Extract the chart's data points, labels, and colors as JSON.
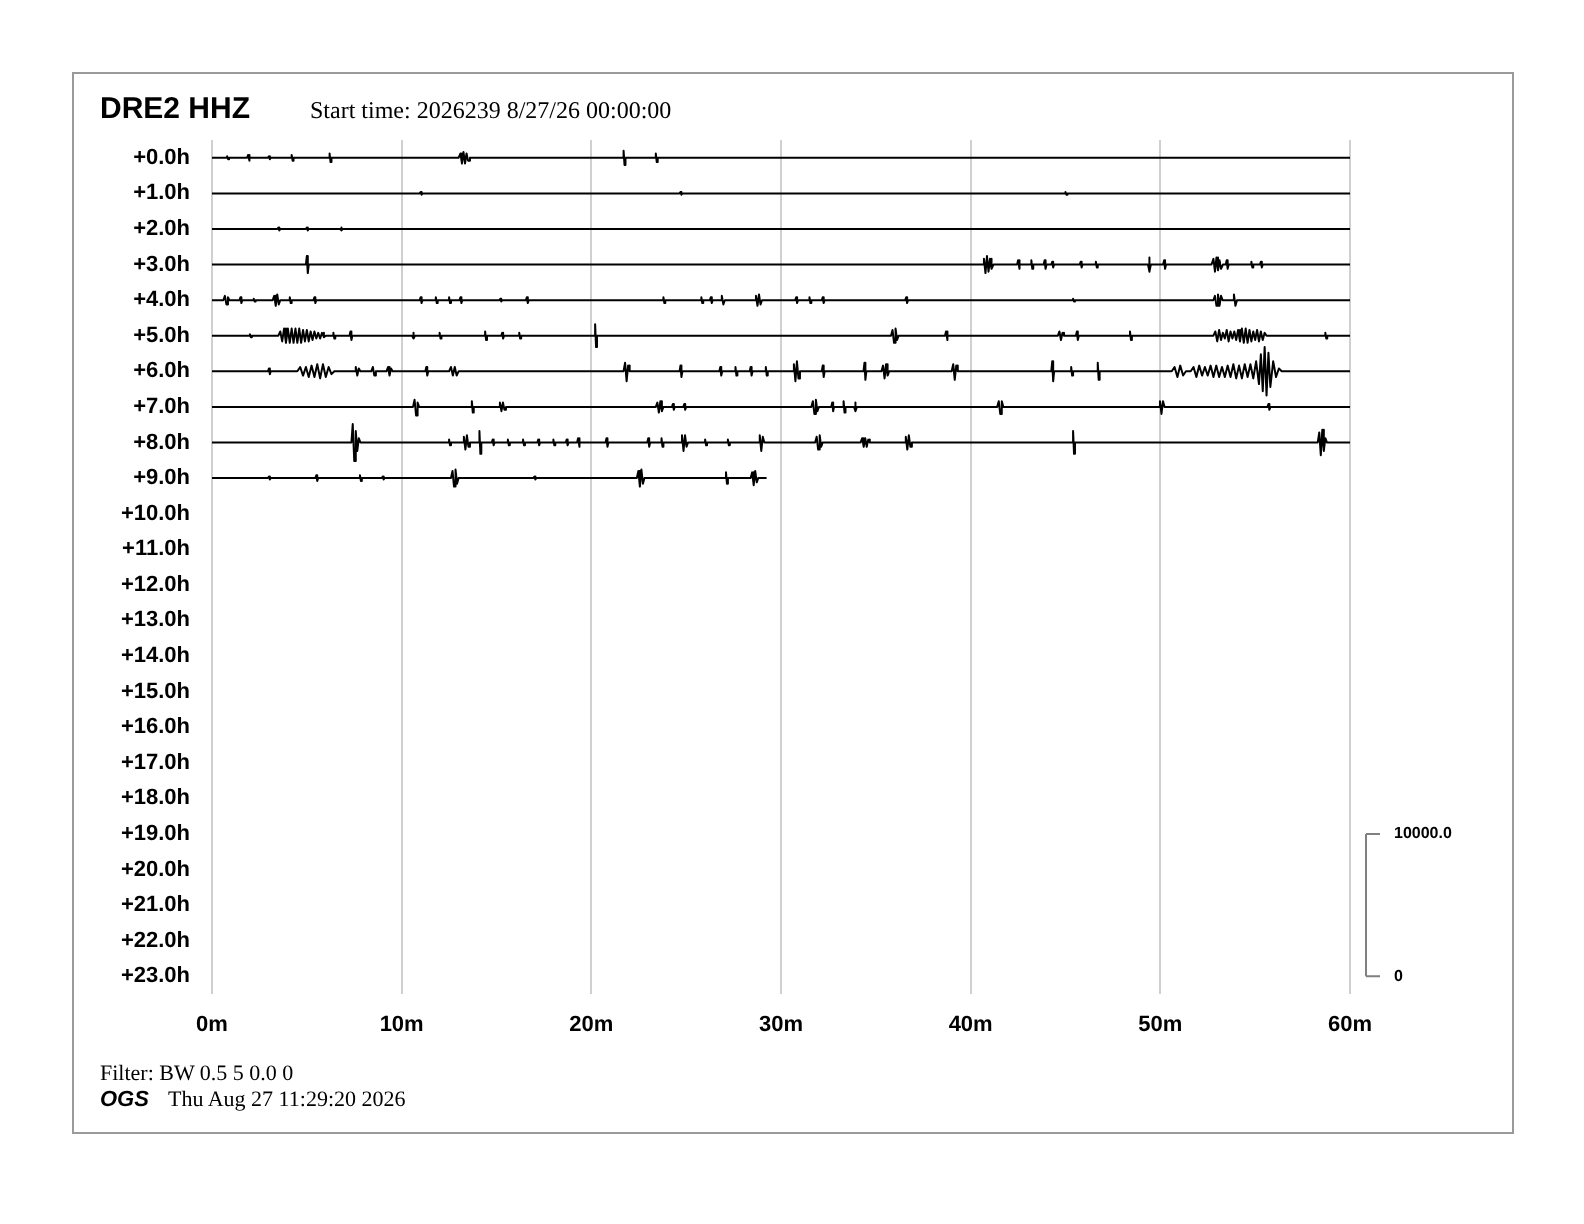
{
  "chart_data": {
    "type": "line",
    "title": "DRE2 HHZ",
    "subtitle": "Start time: 2026239  8/27/26 00:00:00",
    "annotations": [
      "Filter: BW 0.5 5 0.0 0",
      "OGS",
      "Thu Aug 27 11:29:20 2026"
    ],
    "xlim": [
      0,
      60
    ],
    "xticks": [
      {
        "value": 0,
        "label": "0m"
      },
      {
        "value": 10,
        "label": "10m"
      },
      {
        "value": 20,
        "label": "20m"
      },
      {
        "value": 30,
        "label": "30m"
      },
      {
        "value": 40,
        "label": "40m"
      },
      {
        "value": 50,
        "label": "50m"
      },
      {
        "value": 60,
        "label": "60m"
      }
    ],
    "ylim": [
      23.5,
      -0.5
    ],
    "yticks": [
      {
        "value": 0,
        "label": "+0.0h"
      },
      {
        "value": 1,
        "label": "+1.0h"
      },
      {
        "value": 2,
        "label": "+2.0h"
      },
      {
        "value": 3,
        "label": "+3.0h"
      },
      {
        "value": 4,
        "label": "+4.0h"
      },
      {
        "value": 5,
        "label": "+5.0h"
      },
      {
        "value": 6,
        "label": "+6.0h"
      },
      {
        "value": 7,
        "label": "+7.0h"
      },
      {
        "value": 8,
        "label": "+8.0h"
      },
      {
        "value": 9,
        "label": "+9.0h"
      },
      {
        "value": 10,
        "label": "+10.0h"
      },
      {
        "value": 11,
        "label": "+11.0h"
      },
      {
        "value": 12,
        "label": "+12.0h"
      },
      {
        "value": 13,
        "label": "+13.0h"
      },
      {
        "value": 14,
        "label": "+14.0h"
      },
      {
        "value": 15,
        "label": "+15.0h"
      },
      {
        "value": 16,
        "label": "+16.0h"
      },
      {
        "value": 17,
        "label": "+17.0h"
      },
      {
        "value": 18,
        "label": "+18.0h"
      },
      {
        "value": 19,
        "label": "+19.0h"
      },
      {
        "value": 20,
        "label": "+20.0h"
      },
      {
        "value": 21,
        "label": "+21.0h"
      },
      {
        "value": 22,
        "label": "+22.0h"
      },
      {
        "value": 23,
        "label": "+23.0h"
      }
    ],
    "y2lim": [
      -1250,
      58750
    ],
    "y2ticks": [
      0,
      {
        "value": 10000,
        "label": "10000.0"
      }
    ],
    "grid": "x",
    "marker": "none",
    "line_style": "solid",
    "series": [
      {
        "color": "#000000",
        "axis": "y2",
        "x": [
          0,
          0.75,
          0.8,
          0.85,
          0.9,
          1.85,
          1.9,
          1.95,
          2,
          2.95,
          3,
          3.05,
          3.1,
          4.15,
          4.2,
          4.25,
          4.3,
          6.15,
          6.2,
          6.25,
          6.3,
          13,
          13.1,
          13.18,
          13.26,
          13.34,
          13.42,
          13.5,
          13.6,
          21.65,
          21.7,
          21.75,
          21.8,
          23.35,
          23.4,
          23.45,
          23.5,
          60
        ],
        "values": [
          57500,
          57500,
          57600,
          57400,
          57500,
          57500,
          57700,
          57300,
          57500,
          57500,
          57600,
          57400,
          57500,
          57500,
          57700,
          57300,
          57500,
          57500,
          57800,
          57200,
          57500,
          57500,
          57800,
          57100,
          57900,
          57100,
          57800,
          57300,
          57500,
          57500,
          58000,
          57000,
          57500,
          57500,
          57800,
          57200,
          57500,
          57500
        ]
      },
      {
        "color": "#000000",
        "axis": "y2",
        "x": [
          0,
          10.95,
          11,
          11.05,
          11.1,
          24.65,
          24.7,
          24.75,
          24.8,
          44.95,
          45,
          45.05,
          45.1,
          60
        ],
        "values": [
          55000,
          55000,
          55100,
          54900,
          55000,
          55000,
          55100,
          54900,
          55000,
          55000,
          55100,
          54900,
          55000,
          55000
        ]
      },
      {
        "color": "#000000",
        "axis": "y2",
        "x": [
          0,
          3.45,
          3.5,
          3.55,
          3.6,
          4.95,
          5,
          5.05,
          5.1,
          6.75,
          6.8,
          6.85,
          6.9,
          60
        ],
        "values": [
          52500,
          52500,
          52600,
          52400,
          52500,
          52500,
          52600,
          52400,
          52500,
          52500,
          52600,
          52400,
          52500,
          52500
        ]
      },
      {
        "color": "#000000",
        "axis": "y2",
        "x": [
          0,
          4.95,
          5,
          5.05,
          5.1,
          40.6,
          40.7,
          40.78,
          40.86,
          40.94,
          41.02,
          41.1,
          41.2,
          42.45,
          42.5,
          42.55,
          42.6,
          43.15,
          43.2,
          43.25,
          43.3,
          43.85,
          43.9,
          43.95,
          44,
          44.25,
          44.3,
          44.35,
          44.4,
          45.75,
          45.8,
          45.85,
          45.9,
          46.55,
          46.6,
          46.65,
          46.7,
          49.35,
          49.4,
          49.45,
          49.5,
          50.15,
          50.2,
          50.25,
          50.3,
          52.7,
          52.8,
          52.88,
          52.96,
          53.04,
          53.12,
          53.2,
          53.3,
          53.45,
          53.5,
          53.55,
          53.6,
          54.75,
          54.8,
          54.85,
          54.9,
          55.25,
          55.3,
          55.35,
          55.4,
          60
        ],
        "values": [
          50000,
          50000,
          50600,
          49400,
          50000,
          50000,
          50400,
          49400,
          50600,
          49500,
          50400,
          49700,
          50000,
          50000,
          50300,
          49700,
          50000,
          50000,
          50300,
          49700,
          50000,
          50000,
          50300,
          49700,
          50000,
          50000,
          50200,
          49800,
          50000,
          50000,
          50200,
          49800,
          50000,
          50000,
          50200,
          49800,
          50000,
          50000,
          50500,
          49500,
          50000,
          50000,
          50300,
          49700,
          50000,
          50000,
          50400,
          49500,
          50500,
          49600,
          50300,
          49700,
          50000,
          50000,
          50300,
          49700,
          50000,
          50000,
          50200,
          49800,
          50000,
          50000,
          50200,
          49800,
          50000,
          50000
        ]
      },
      {
        "color": "#000000",
        "axis": "y2",
        "x": [
          0,
          0.6,
          0.68,
          0.76,
          0.84,
          0.92,
          1.45,
          1.5,
          1.55,
          1.6,
          2.15,
          2.2,
          2.25,
          2.3,
          3.2,
          3.28,
          3.36,
          3.44,
          3.52,
          3.6,
          4.05,
          4.1,
          4.15,
          4.2,
          5.35,
          5.4,
          5.45,
          5.5,
          10.95,
          11,
          11.05,
          11.1,
          11.75,
          11.8,
          11.85,
          11.9,
          12.45,
          12.5,
          12.55,
          12.6,
          13.05,
          13.1,
          13.15,
          13.2,
          15.15,
          15.2,
          15.25,
          15.3,
          16.55,
          16.6,
          16.65,
          16.7,
          23.75,
          23.8,
          23.85,
          23.9,
          25.75,
          25.8,
          25.85,
          25.9,
          26.25,
          26.3,
          26.35,
          26.4,
          26.8,
          26.88,
          26.96,
          27.04,
          28.6,
          28.68,
          28.76,
          28.84,
          28.92,
          29,
          30.75,
          30.8,
          30.85,
          30.9,
          31.45,
          31.5,
          31.55,
          31.6,
          32.15,
          32.2,
          32.25,
          32.3,
          36.55,
          36.6,
          36.65,
          36.7,
          45.35,
          45.4,
          45.45,
          45.5,
          52.8,
          52.88,
          52.96,
          53.04,
          53.12,
          53.2,
          53.28,
          53.8,
          53.88,
          53.96,
          54.04,
          60
        ],
        "values": [
          47500,
          47500,
          47800,
          47200,
          47700,
          47500,
          47500,
          47700,
          47300,
          47500,
          47500,
          47600,
          47400,
          47500,
          47500,
          47800,
          47100,
          47900,
          47200,
          47500,
          47500,
          47700,
          47300,
          47500,
          47500,
          47700,
          47300,
          47500,
          47500,
          47700,
          47300,
          47500,
          47500,
          47700,
          47300,
          47500,
          47500,
          47700,
          47300,
          47500,
          47500,
          47700,
          47300,
          47500,
          47500,
          47600,
          47400,
          47500,
          47500,
          47700,
          47300,
          47500,
          47500,
          47700,
          47300,
          47500,
          47500,
          47700,
          47300,
          47500,
          47500,
          47700,
          47300,
          47500,
          47500,
          47800,
          47200,
          47500,
          47500,
          47800,
          47100,
          47900,
          47200,
          47500,
          47500,
          47700,
          47300,
          47500,
          47500,
          47700,
          47300,
          47500,
          47500,
          47700,
          47300,
          47500,
          47500,
          47700,
          47300,
          47500,
          47500,
          47600,
          47400,
          47500,
          47500,
          47800,
          47100,
          47900,
          47100,
          47800,
          47500,
          47500,
          47900,
          47100,
          47500,
          47500
        ]
      },
      {
        "color": "#000000",
        "axis": "y2",
        "x": [
          0,
          1.95,
          2,
          2.05,
          2.1,
          3.5,
          3.6,
          3.7,
          3.8,
          3.9,
          4,
          4.1,
          4.2,
          4.3,
          4.4,
          4.5,
          4.6,
          4.7,
          4.8,
          4.9,
          5,
          5.1,
          5.2,
          5.3,
          5.4,
          5.5,
          5.6,
          5.7,
          5.8,
          5.9,
          6,
          6.35,
          6.4,
          6.45,
          6.5,
          7.25,
          7.3,
          7.35,
          7.4,
          10.55,
          10.6,
          10.65,
          10.7,
          11.95,
          12,
          12.05,
          12.1,
          14.35,
          14.4,
          14.45,
          14.5,
          15.25,
          15.3,
          15.35,
          15.4,
          16.15,
          16.2,
          16.25,
          16.3,
          20.15,
          20.2,
          20.25,
          20.3,
          35.8,
          35.88,
          35.96,
          36.04,
          36.12,
          36.2,
          38.65,
          38.7,
          38.75,
          38.8,
          44.6,
          44.68,
          44.76,
          44.84,
          44.92,
          45.55,
          45.6,
          45.65,
          45.7,
          48.35,
          48.4,
          48.45,
          48.5,
          52.8,
          52.9,
          53,
          53.1,
          53.2,
          53.3,
          53.4,
          53.5,
          53.6,
          53.7,
          53.8,
          53.9,
          54,
          54.1,
          54.2,
          54.3,
          54.4,
          54.5,
          54.6,
          54.7,
          54.8,
          54.9,
          55,
          55.1,
          55.2,
          55.3,
          55.4,
          55.5,
          55.6,
          58.65,
          58.7,
          58.75,
          58.8,
          60
        ],
        "values": [
          45000,
          45000,
          45100,
          44900,
          45000,
          45000,
          45300,
          44600,
          45500,
          44500,
          45500,
          44500,
          45500,
          44500,
          45500,
          44500,
          45500,
          44500,
          45400,
          44600,
          45400,
          44600,
          45300,
          44700,
          45300,
          44800,
          45200,
          44800,
          45200,
          44900,
          45000,
          45000,
          45200,
          44800,
          45000,
          45000,
          45300,
          44700,
          45000,
          45000,
          45200,
          44800,
          45000,
          45000,
          45200,
          44800,
          45000,
          45000,
          45300,
          44700,
          45000,
          45000,
          45200,
          44800,
          45000,
          45000,
          45200,
          44800,
          45000,
          45000,
          45800,
          44200,
          45000,
          45000,
          45400,
          44500,
          45500,
          44700,
          45000,
          45000,
          45300,
          44700,
          45000,
          45000,
          45300,
          44700,
          45200,
          45000,
          45000,
          45300,
          44700,
          45000,
          45000,
          45300,
          44700,
          45000,
          45000,
          45300,
          44600,
          45400,
          44700,
          45200,
          44800,
          45400,
          44600,
          45300,
          44800,
          45300,
          44700,
          45400,
          44600,
          45500,
          44500,
          45500,
          44500,
          45400,
          44600,
          45300,
          44700,
          45400,
          44600,
          45300,
          44700,
          45200,
          45000,
          45000,
          45200,
          44800,
          45000,
          45000
        ]
      },
      {
        "color": "#000000",
        "axis": "y2",
        "x": [
          0,
          2.95,
          3,
          3.05,
          3.1,
          4.5,
          4.65,
          4.8,
          4.95,
          5.1,
          5.25,
          5.4,
          5.55,
          5.7,
          5.85,
          6,
          6.15,
          6.3,
          6.45,
          7.5,
          7.58,
          7.66,
          7.74,
          7.82,
          8.4,
          8.48,
          8.56,
          8.64,
          9.2,
          9.28,
          9.36,
          9.44,
          9.52,
          11.25,
          11.3,
          11.35,
          11.4,
          12.5,
          12.6,
          12.7,
          12.8,
          12.9,
          13,
          21.7,
          21.78,
          21.86,
          21.94,
          22.02,
          24.65,
          24.7,
          24.75,
          24.8,
          26.75,
          26.8,
          26.85,
          26.9,
          27.55,
          27.6,
          27.65,
          27.7,
          28.35,
          28.4,
          28.45,
          28.5,
          29.15,
          29.2,
          29.25,
          29.3,
          30.6,
          30.68,
          30.76,
          30.84,
          30.92,
          31,
          32.15,
          32.2,
          32.25,
          32.3,
          34.35,
          34.4,
          34.45,
          34.5,
          35.3,
          35.38,
          35.46,
          35.54,
          35.62,
          35.7,
          39,
          39.08,
          39.16,
          39.24,
          39.32,
          44.25,
          44.3,
          44.35,
          44.4,
          45.25,
          45.3,
          45.35,
          45.4,
          46.65,
          46.7,
          46.75,
          46.8,
          50.6,
          50.75,
          50.9,
          51.05,
          51.2,
          51.35,
          51.6,
          51.75,
          51.9,
          52.05,
          52.2,
          52.35,
          52.5,
          52.65,
          52.8,
          52.95,
          53.1,
          53.25,
          53.4,
          53.55,
          53.7,
          53.85,
          54,
          54.15,
          54.3,
          54.45,
          54.6,
          54.75,
          54.9,
          55.05,
          55.2,
          55.3,
          55.4,
          55.5,
          55.6,
          55.7,
          55.8,
          55.95,
          56.1,
          56.25,
          56.4,
          60
        ],
        "values": [
          42500,
          42500,
          42700,
          42300,
          42500,
          42500,
          42800,
          42200,
          42800,
          42100,
          42900,
          42100,
          43000,
          42000,
          43000,
          42100,
          42800,
          42300,
          42500,
          42500,
          42800,
          42200,
          42700,
          42500,
          42500,
          42800,
          42200,
          42500,
          42500,
          42800,
          42200,
          42700,
          42500,
          42500,
          42800,
          42200,
          42500,
          42500,
          42800,
          42200,
          42800,
          42200,
          42500,
          42500,
          43100,
          41800,
          42900,
          42500,
          42500,
          42900,
          42100,
          42500,
          42500,
          42800,
          42200,
          42500,
          42500,
          42800,
          42200,
          42500,
          42500,
          42800,
          42200,
          42500,
          42500,
          42800,
          42200,
          42500,
          42500,
          43000,
          41800,
          43200,
          42000,
          42500,
          42500,
          42900,
          42100,
          42500,
          42500,
          43100,
          41900,
          42500,
          42500,
          42900,
          42000,
          43000,
          42200,
          42500,
          42500,
          43000,
          41900,
          42900,
          42500,
          42500,
          43200,
          41800,
          42500,
          42500,
          42800,
          42200,
          42500,
          42500,
          43100,
          41900,
          42500,
          42500,
          42800,
          42100,
          42900,
          42200,
          42500,
          42500,
          42800,
          42100,
          42900,
          42200,
          42800,
          42200,
          42900,
          42100,
          42900,
          42100,
          42800,
          42100,
          42900,
          42100,
          43000,
          42000,
          42900,
          42000,
          43000,
          42100,
          43000,
          42000,
          43200,
          41600,
          43700,
          41100,
          44200,
          40800,
          43800,
          41400,
          43200,
          42100,
          42700,
          42500,
          42500
        ]
      },
      {
        "color": "#000000",
        "axis": "y2",
        "x": [
          0,
          10.6,
          10.68,
          10.76,
          10.84,
          10.92,
          13.65,
          13.7,
          13.75,
          13.8,
          15.1,
          15.18,
          15.26,
          15.34,
          15.42,
          15.5,
          23.4,
          23.48,
          23.56,
          23.64,
          23.72,
          23.8,
          24.25,
          24.3,
          24.35,
          24.4,
          24.85,
          24.9,
          24.95,
          25,
          31.6,
          31.68,
          31.76,
          31.84,
          31.92,
          32,
          32.65,
          32.7,
          32.75,
          32.8,
          33.25,
          33.3,
          33.35,
          33.4,
          33.85,
          33.9,
          33.95,
          34,
          41.4,
          41.48,
          41.56,
          41.64,
          41.72,
          49.9,
          49.98,
          50.06,
          50.14,
          50.22,
          55.65,
          55.7,
          55.75,
          55.8,
          60
        ],
        "values": [
          40000,
          40000,
          40500,
          39400,
          40300,
          40000,
          40000,
          40400,
          39600,
          40000,
          40000,
          40300,
          39700,
          40300,
          39800,
          40000,
          40000,
          40300,
          39600,
          40400,
          39700,
          40000,
          40000,
          40200,
          39800,
          40000,
          40000,
          40200,
          39800,
          40000,
          40000,
          40400,
          39500,
          40500,
          39700,
          40000,
          40000,
          40300,
          39700,
          40000,
          40000,
          40400,
          39600,
          40000,
          40000,
          40300,
          39700,
          40000,
          40000,
          40400,
          39500,
          40400,
          40000,
          40000,
          40400,
          39500,
          40400,
          40000,
          40000,
          40200,
          39800,
          40000,
          40000
        ]
      },
      {
        "color": "#000000",
        "axis": "y2",
        "x": [
          0,
          7.35,
          7.42,
          7.5,
          7.58,
          7.66,
          7.74,
          7.82,
          12.45,
          12.5,
          12.55,
          12.6,
          13.2,
          13.28,
          13.36,
          13.44,
          13.52,
          13.6,
          14.05,
          14.1,
          14.15,
          14.2,
          14.75,
          14.8,
          14.85,
          14.9,
          15.55,
          15.6,
          15.65,
          15.7,
          16.35,
          16.4,
          16.45,
          16.5,
          17.15,
          17.2,
          17.25,
          17.3,
          17.95,
          18,
          18.05,
          18.1,
          18.65,
          18.7,
          18.75,
          18.8,
          19.25,
          19.3,
          19.35,
          19.4,
          20.75,
          20.8,
          20.85,
          20.9,
          22.95,
          23,
          23.05,
          23.1,
          23.65,
          23.7,
          23.75,
          23.8,
          24.7,
          24.78,
          24.86,
          24.94,
          25.02,
          25.1,
          25.95,
          26,
          26.05,
          26.1,
          27.15,
          27.2,
          27.25,
          27.3,
          28.8,
          28.88,
          28.96,
          29.04,
          29.12,
          31.8,
          31.88,
          31.96,
          32.04,
          32.12,
          32.2,
          34.2,
          34.28,
          34.36,
          34.44,
          34.52,
          34.6,
          34.68,
          36.5,
          36.58,
          36.66,
          36.74,
          36.82,
          36.9,
          45.35,
          45.4,
          45.45,
          45.5,
          58.3,
          58.38,
          58.46,
          58.54,
          58.62,
          58.7,
          58.78,
          60
        ],
        "values": [
          37500,
          37500,
          38800,
          36200,
          38300,
          36900,
          37800,
          37500,
          37500,
          37700,
          37300,
          37500,
          37500,
          37900,
          37000,
          38000,
          37200,
          37500,
          37500,
          38300,
          36700,
          37500,
          37500,
          37700,
          37300,
          37500,
          37500,
          37700,
          37300,
          37500,
          37500,
          37700,
          37300,
          37500,
          37500,
          37700,
          37300,
          37500,
          37500,
          37700,
          37300,
          37500,
          37500,
          37700,
          37300,
          37500,
          37500,
          37800,
          37200,
          37500,
          37500,
          37800,
          37200,
          37500,
          37500,
          37800,
          37200,
          37500,
          37500,
          37800,
          37200,
          37500,
          37500,
          38000,
          36900,
          38000,
          37200,
          37500,
          37500,
          37700,
          37300,
          37500,
          37500,
          37700,
          37300,
          37500,
          37500,
          38000,
          36900,
          37900,
          37500,
          37500,
          37900,
          37000,
          38000,
          37200,
          37500,
          37500,
          37800,
          37200,
          37800,
          37200,
          37700,
          37500,
          37500,
          37900,
          37000,
          38000,
          37200,
          37500,
          37500,
          38300,
          36700,
          37500,
          37500,
          38200,
          36600,
          38400,
          36900,
          37800,
          37500,
          37500
        ]
      },
      {
        "color": "#000000",
        "axis": "y2",
        "x": [
          0,
          2.95,
          3,
          3.05,
          3.1,
          5.45,
          5.5,
          5.55,
          5.6,
          7.75,
          7.8,
          7.85,
          7.9,
          8.95,
          9,
          9.05,
          9.1,
          12.6,
          12.68,
          12.76,
          12.84,
          12.92,
          13,
          16.95,
          17,
          17.05,
          17.1,
          22.4,
          22.48,
          22.56,
          22.64,
          22.72,
          22.8,
          27.05,
          27.1,
          27.15,
          27.2,
          28.4,
          28.48,
          28.56,
          28.64,
          28.72,
          28.8,
          29.2
        ],
        "values": [
          35000,
          35000,
          35100,
          34900,
          35000,
          35000,
          35200,
          34800,
          35000,
          35000,
          35200,
          34800,
          35000,
          35000,
          35100,
          34900,
          35000,
          35000,
          35500,
          34400,
          35600,
          34600,
          35000,
          35000,
          35100,
          34900,
          35000,
          35000,
          35500,
          34400,
          35600,
          34600,
          35000,
          35000,
          35400,
          34600,
          35000,
          35000,
          35400,
          34500,
          35500,
          34700,
          35000,
          35000
        ]
      }
    ]
  }
}
